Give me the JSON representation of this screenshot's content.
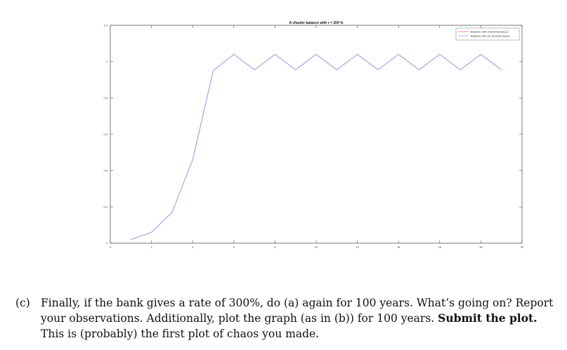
{
  "chart_data": {
    "type": "line",
    "title": "A chaotic balance with r = 200 %",
    "xlim": [
      0,
      20
    ],
    "ylim": [
      0,
      1.2
    ],
    "xticks": [
      0,
      2,
      4,
      6,
      8,
      10,
      12,
      14,
      16,
      18,
      20
    ],
    "yticks": [
      0,
      0.2,
      0.4,
      0.6,
      0.8,
      1,
      1.2
    ],
    "xtick_labels": [
      "0",
      "2",
      "4",
      "6",
      "8",
      "10",
      "12",
      "14",
      "16",
      "18",
      "20"
    ],
    "ytick_labels": [
      "0",
      "0.2",
      "0.4",
      "0.6",
      "0.8",
      "1",
      "1.2"
    ],
    "legend_position": "top-right",
    "grid": false,
    "x": [
      1,
      2,
      3,
      4,
      5,
      6,
      7,
      8,
      9,
      10,
      11,
      12,
      13,
      14,
      15,
      16,
      17,
      18,
      19
    ],
    "series": [
      {
        "name": "Balance with 8 decimal places",
        "color": "#ff8080",
        "values": [
          0.02,
          0.06,
          0.17,
          0.46,
          0.95,
          1.04,
          0.955,
          1.04,
          0.955,
          1.04,
          0.955,
          1.04,
          0.955,
          1.04,
          0.955,
          1.04,
          0.955,
          1.04,
          0.955
        ]
      },
      {
        "name": "Balance with 10 decimal places",
        "color": "#a9a9ff",
        "values": [
          0.02,
          0.06,
          0.17,
          0.46,
          0.95,
          1.04,
          0.955,
          1.04,
          0.955,
          1.04,
          0.955,
          1.04,
          0.955,
          1.04,
          0.955,
          1.04,
          0.955,
          1.04,
          0.955
        ]
      }
    ]
  },
  "question": {
    "label": "(c)",
    "line1": "Finally, if the bank gives a rate of 300%, do (a) again for 100 years. What’s going on? Report",
    "line2_plain": "your observations. Additionally, plot the graph (as in (b)) for 100 years.",
    "line2_bold": "Submit the plot.",
    "line3": "This is (probably) the first plot of chaos you made."
  }
}
